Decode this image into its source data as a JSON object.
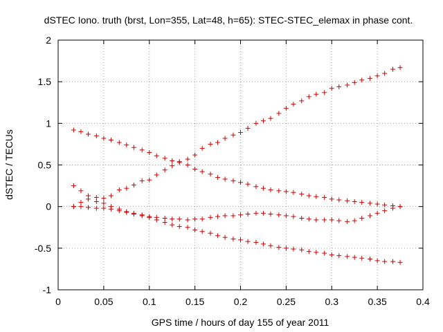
{
  "chart_data": {
    "type": "scatter",
    "title": "dSTEC Iono. truth (brst, Lon=355, Lat=48, h=65): STEC-STEC_elemax in phase cont.",
    "xlabel": "GPS time / hours of day 155 of year 2011",
    "ylabel": "dSTEC  / TECUs",
    "xlim": [
      0,
      0.4
    ],
    "ylim": [
      -1,
      2
    ],
    "x_ticks": [
      "0",
      "0.05",
      "0.1",
      "0.15",
      "0.2",
      "0.25",
      "0.3",
      "0.35",
      "0.4"
    ],
    "y_ticks": [
      "-1",
      "-0.5",
      "0",
      "0.5",
      "1",
      "1.5",
      "2"
    ],
    "grid": true,
    "marker": "plus",
    "marker_color": "#cc0000",
    "series": [
      {
        "x": [
          0.017,
          0.025,
          0.033,
          0.042,
          0.05,
          0.058,
          0.067,
          0.075,
          0.083,
          0.092,
          0.1,
          0.108,
          0.117,
          0.125,
          0.133,
          0.142,
          0.15,
          0.158,
          0.167,
          0.175,
          0.183,
          0.192,
          0.2,
          0.208,
          0.217,
          0.225,
          0.233,
          0.242,
          0.25,
          0.258,
          0.267,
          0.275,
          0.283,
          0.292,
          0.3,
          0.308,
          0.317,
          0.325,
          0.333,
          0.342,
          0.35,
          0.358,
          0.367,
          0.375
        ],
        "y": [
          0.25,
          0.19,
          0.13,
          0.11,
          0.1,
          0.13,
          0.2,
          0.22,
          0.26,
          0.31,
          0.32,
          0.38,
          0.44,
          0.49,
          0.53,
          0.57,
          0.62,
          0.7,
          0.75,
          0.77,
          0.82,
          0.86,
          0.89,
          0.94,
          1.0,
          1.03,
          1.06,
          1.12,
          1.18,
          1.23,
          1.27,
          1.32,
          1.35,
          1.37,
          1.42,
          1.44,
          1.46,
          1.49,
          1.52,
          1.54,
          1.57,
          1.6,
          1.65,
          1.67
        ]
      },
      {
        "x": [
          0.017,
          0.025,
          0.033,
          0.042,
          0.05,
          0.058,
          0.067,
          0.075,
          0.083,
          0.092,
          0.1,
          0.108,
          0.117,
          0.125,
          0.133,
          0.142,
          0.15,
          0.158,
          0.167,
          0.175,
          0.183,
          0.192,
          0.2,
          0.208,
          0.217,
          0.225,
          0.233,
          0.242,
          0.25,
          0.258,
          0.267,
          0.275,
          0.283,
          0.292,
          0.3,
          0.308,
          0.317,
          0.325,
          0.333,
          0.342,
          0.35,
          0.358,
          0.367,
          0.375
        ],
        "y": [
          0.92,
          0.9,
          0.87,
          0.85,
          0.82,
          0.8,
          0.77,
          0.74,
          0.71,
          0.68,
          0.65,
          0.61,
          0.58,
          0.55,
          0.54,
          0.5,
          0.45,
          0.42,
          0.39,
          0.35,
          0.33,
          0.31,
          0.29,
          0.27,
          0.24,
          0.22,
          0.2,
          0.19,
          0.18,
          0.17,
          0.15,
          0.13,
          0.12,
          0.11,
          0.09,
          0.08,
          0.07,
          0.06,
          0.05,
          0.04,
          0.03,
          0.02,
          0.01,
          0.0
        ]
      },
      {
        "x": [
          0.017,
          0.025,
          0.033,
          0.042,
          0.05,
          0.058,
          0.067,
          0.075,
          0.083,
          0.092,
          0.1,
          0.108,
          0.117,
          0.125,
          0.133,
          0.142,
          0.15,
          0.158,
          0.167,
          0.175,
          0.183,
          0.192,
          0.2,
          0.208,
          0.217,
          0.225,
          0.233,
          0.242,
          0.25,
          0.258,
          0.267,
          0.275,
          0.283,
          0.292,
          0.3,
          0.308,
          0.317,
          0.325,
          0.333,
          0.342,
          0.35,
          0.358,
          0.367,
          0.375
        ],
        "y": [
          0.0,
          0.05,
          0.09,
          0.06,
          0.04,
          0.0,
          -0.03,
          -0.06,
          -0.08,
          -0.1,
          -0.12,
          -0.13,
          -0.14,
          -0.15,
          -0.15,
          -0.16,
          -0.15,
          -0.15,
          -0.13,
          -0.12,
          -0.11,
          -0.11,
          -0.1,
          -0.09,
          -0.08,
          -0.08,
          -0.09,
          -0.1,
          -0.11,
          -0.12,
          -0.14,
          -0.15,
          -0.16,
          -0.16,
          -0.16,
          -0.17,
          -0.18,
          -0.17,
          -0.14,
          -0.11,
          -0.08,
          -0.05,
          -0.02,
          0.0
        ]
      },
      {
        "x": [
          0.017,
          0.025,
          0.033,
          0.042,
          0.05,
          0.058,
          0.067,
          0.075,
          0.083,
          0.092,
          0.1,
          0.108,
          0.117,
          0.125,
          0.133,
          0.142,
          0.15,
          0.158,
          0.167,
          0.175,
          0.183,
          0.192,
          0.2,
          0.208,
          0.217,
          0.225,
          0.233,
          0.242,
          0.25,
          0.258,
          0.267,
          0.275,
          0.283,
          0.292,
          0.3,
          0.308,
          0.317,
          0.325,
          0.333,
          0.342,
          0.35,
          0.358,
          0.367,
          0.375
        ],
        "y": [
          0.0,
          0.0,
          -0.01,
          -0.02,
          -0.02,
          -0.03,
          -0.05,
          -0.07,
          -0.09,
          -0.11,
          -0.13,
          -0.16,
          -0.19,
          -0.22,
          -0.24,
          -0.25,
          -0.28,
          -0.3,
          -0.32,
          -0.35,
          -0.37,
          -0.39,
          -0.4,
          -0.42,
          -0.43,
          -0.45,
          -0.47,
          -0.49,
          -0.5,
          -0.51,
          -0.52,
          -0.54,
          -0.55,
          -0.56,
          -0.58,
          -0.59,
          -0.6,
          -0.61,
          -0.62,
          -0.63,
          -0.65,
          -0.66,
          -0.66,
          -0.67
        ]
      }
    ]
  }
}
